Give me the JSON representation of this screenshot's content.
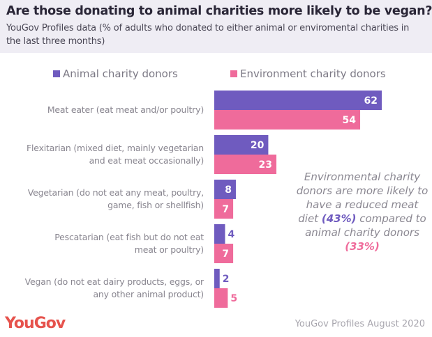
{
  "header": {
    "title": "Are those donating to animal charities more likely to be vegan?",
    "subtitle": "YouGov Profiles data (% of adults who donated to either animal or enviromental charities in the last three months)"
  },
  "colors": {
    "animal": "#6f5bbf",
    "environment": "#ef6b9b",
    "header_bg": "#efedf4"
  },
  "chart_data": {
    "type": "bar",
    "orientation": "horizontal",
    "title": "Are those donating to animal charities more likely to be vegan?",
    "subtitle": "YouGov Profiles data (% of adults who donated to either animal or enviromental charities in the last three months)",
    "xlabel": "",
    "ylabel": "",
    "unit": "%",
    "xlim": [
      0,
      62
    ],
    "grid": false,
    "legend_position": "top",
    "categories": [
      "Meat eater (eat meat and/or poultry)",
      "Flexitarian (mixed diet, mainly vegetarian and eat meat occasionally)",
      "Vegetarian (do not eat any meat, poultry, game, fish or shellfish)",
      "Pescatarian (eat fish but do not eat meat or poultry)",
      "Vegan (do not eat dairy products, eggs, or any other animal product)"
    ],
    "category_lines": [
      [
        "Meat eater (eat meat and/or poultry)"
      ],
      [
        "Flexitarian (mixed diet, mainly vegetarian",
        "and eat meat occasionally)"
      ],
      [
        "Vegetarian (do not eat any meat, poultry,",
        "game, fish or shellfish)"
      ],
      [
        "Pescatarian (eat fish but do not eat",
        "meat or poultry)"
      ],
      [
        "Vegan (do not eat dairy products, eggs, or",
        "any other animal product)"
      ]
    ],
    "series": [
      {
        "name": "Animal charity donors",
        "color": "#6f5bbf",
        "values": [
          62,
          20,
          8,
          4,
          2
        ]
      },
      {
        "name": "Environment charity donors",
        "color": "#ef6b9b",
        "values": [
          54,
          23,
          7,
          7,
          5
        ]
      }
    ],
    "annotation": {
      "text_parts": [
        "Environmental charity donors are more likely to have a reduced meat diet ",
        "(43%)",
        " compared to animal charity donors ",
        "(33%)"
      ]
    }
  },
  "footer": {
    "logo": "YouGov",
    "source": "YouGov Profiles August 2020"
  }
}
